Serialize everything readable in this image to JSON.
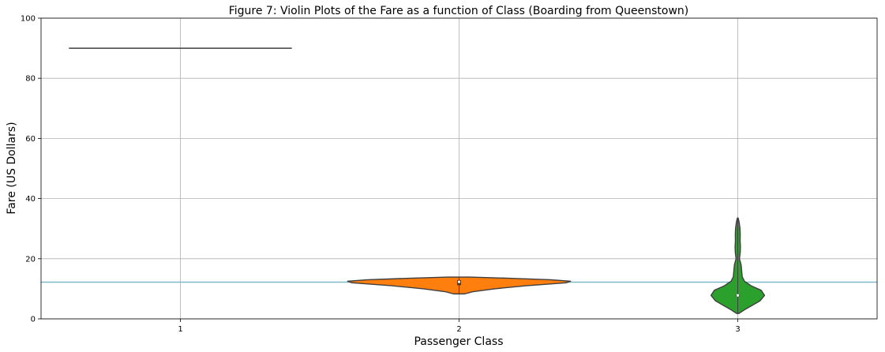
{
  "chart_data": {
    "type": "violin",
    "title": "Figure 7:  Violin Plots of the Fare as a function of Class (Boarding from Queenstown)",
    "xlabel": "Passenger Class",
    "ylabel": "Fare (US Dollars)",
    "categories": [
      "1",
      "2",
      "3"
    ],
    "ylim": [
      0,
      100
    ],
    "yticks": [
      0,
      20,
      40,
      60,
      80,
      100
    ],
    "grid": true,
    "reference_line": {
      "y": 12.2,
      "color": "#7fb9c8"
    },
    "violins": [
      {
        "category": "1",
        "color": "#1f77b4",
        "single_value": 90,
        "profile": []
      },
      {
        "category": "2",
        "color": "#ff7f0e",
        "profile": [
          [
            8.3,
            0.05
          ],
          [
            9.0,
            0.12
          ],
          [
            10.0,
            0.32
          ],
          [
            11.0,
            0.6
          ],
          [
            12.0,
            0.96
          ],
          [
            12.5,
            1.0
          ],
          [
            13.0,
            0.82
          ],
          [
            13.5,
            0.45
          ],
          [
            13.9,
            0.1
          ]
        ],
        "box": {
          "q1": 11.2,
          "median": 12.3,
          "q3": 12.9
        }
      },
      {
        "category": "3",
        "color": "#2ca02c",
        "profile": [
          [
            1.8,
            0.01
          ],
          [
            3.0,
            0.06
          ],
          [
            4.5,
            0.13
          ],
          [
            6.0,
            0.2
          ],
          [
            7.8,
            0.24
          ],
          [
            9.5,
            0.21
          ],
          [
            11.0,
            0.12
          ],
          [
            12.5,
            0.06
          ],
          [
            14.0,
            0.04
          ],
          [
            16.0,
            0.035
          ],
          [
            18.0,
            0.03
          ],
          [
            20.0,
            0.015
          ],
          [
            22.0,
            0.022
          ],
          [
            24.0,
            0.024
          ],
          [
            26.0,
            0.021
          ],
          [
            28.0,
            0.022
          ],
          [
            30.0,
            0.02
          ],
          [
            32.0,
            0.013
          ],
          [
            33.5,
            0.004
          ]
        ],
        "box": {
          "q1": 7.75,
          "median": 7.8,
          "q3": 7.9
        }
      }
    ]
  }
}
